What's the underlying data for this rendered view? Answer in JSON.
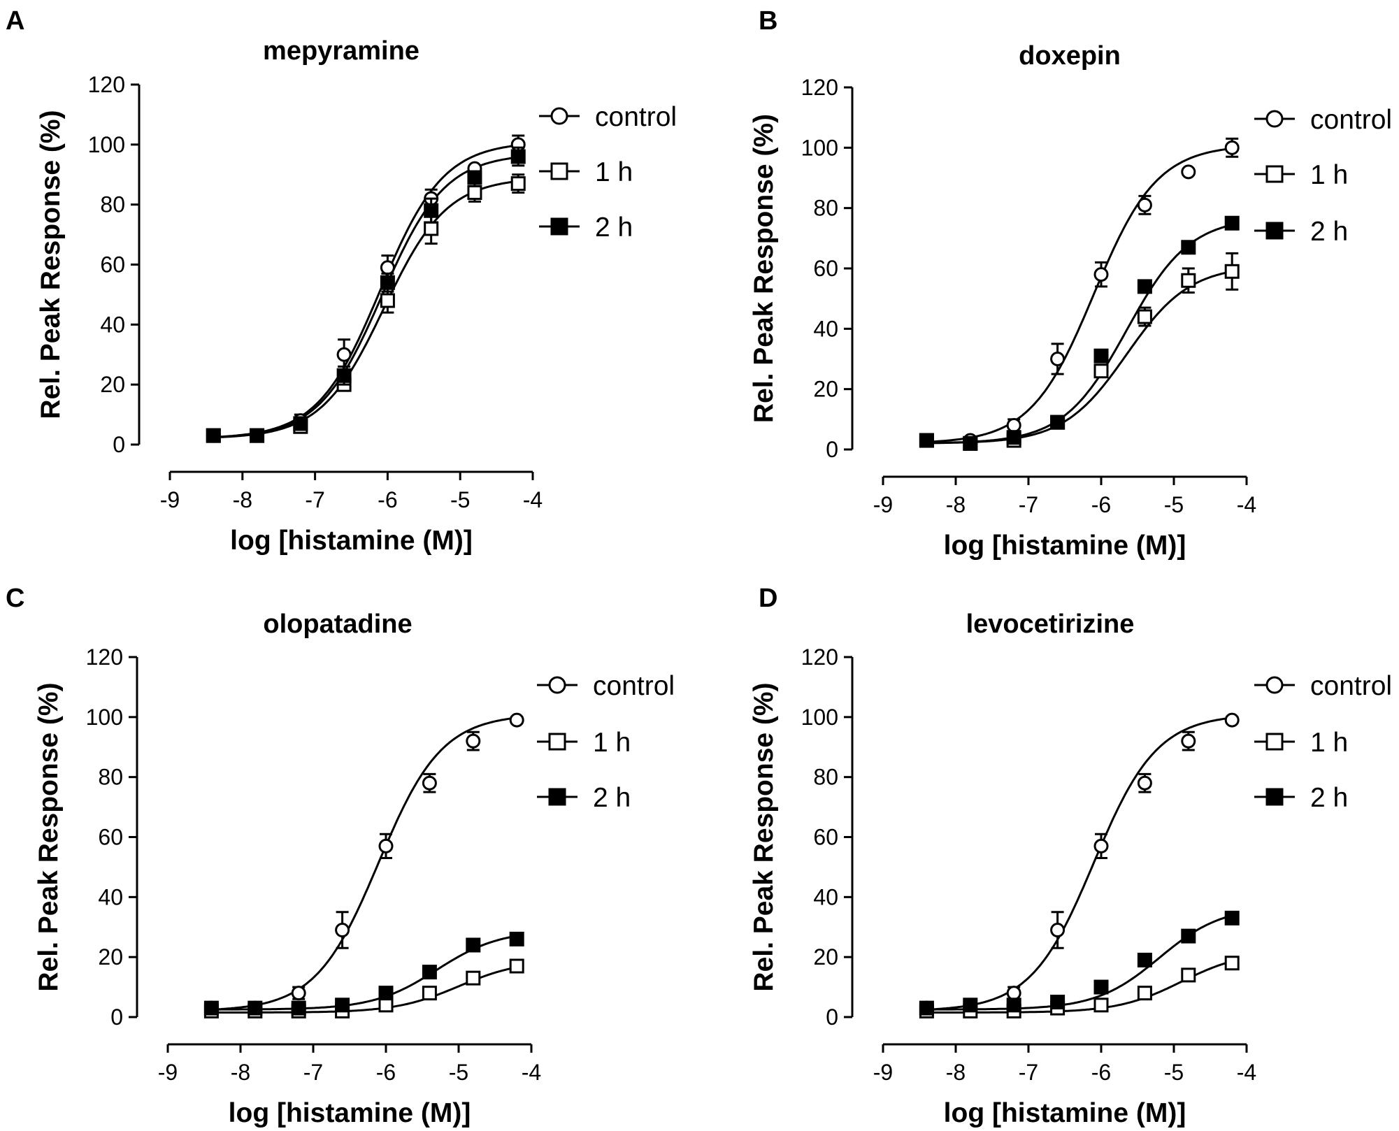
{
  "figure": {
    "description_colors": {
      "line": "#000000",
      "open_fill": "#ffffff",
      "filled_fill": "#000000"
    }
  },
  "chart_data": [
    {
      "type": "line",
      "panel": "A",
      "title": "mepyramine",
      "xlabel": "log [histamine (M)]",
      "ylabel": "Rel. Peak Response (%)",
      "xlim": [
        -9,
        -4
      ],
      "ylim": [
        0,
        120
      ],
      "xticks": [
        -9,
        -8,
        -7,
        -6,
        -5,
        -4
      ],
      "yticks": [
        0,
        20,
        40,
        60,
        80,
        100,
        120
      ],
      "x": [
        -8.4,
        -7.8,
        -7.2,
        -6.6,
        -6.0,
        -5.4,
        -4.8,
        -4.2
      ],
      "legend_position": "top-right",
      "series": [
        {
          "name": "control",
          "marker": "circle-open",
          "values": [
            3,
            3,
            8,
            30,
            59,
            82,
            92,
            100
          ],
          "errors": [
            0,
            0,
            2,
            5,
            4,
            3,
            1,
            3
          ],
          "fit": {
            "bottom": 2,
            "top": 101,
            "logec50": -6.1,
            "hill": 1.0
          }
        },
        {
          "name": "1 h",
          "marker": "square-open",
          "values": [
            3,
            3,
            6,
            20,
            48,
            72,
            84,
            87
          ],
          "errors": [
            0,
            0,
            1,
            2,
            4,
            5,
            3,
            3
          ],
          "fit": {
            "bottom": 2,
            "top": 89,
            "logec50": -6.05,
            "hill": 1.0
          }
        },
        {
          "name": "2 h",
          "marker": "square-filled",
          "values": [
            3,
            3,
            7,
            23,
            54,
            78,
            89,
            96
          ],
          "errors": [
            0,
            0,
            1,
            3,
            3,
            4,
            2,
            3
          ],
          "fit": {
            "bottom": 2,
            "top": 97,
            "logec50": -6.08,
            "hill": 1.0
          }
        }
      ]
    },
    {
      "type": "line",
      "panel": "B",
      "title": "doxepin",
      "xlabel": "log [histamine (M)]",
      "ylabel": "Rel. Peak Response (%)",
      "xlim": [
        -9,
        -4
      ],
      "ylim": [
        0,
        120
      ],
      "xticks": [
        -9,
        -8,
        -7,
        -6,
        -5,
        -4
      ],
      "yticks": [
        0,
        20,
        40,
        60,
        80,
        100,
        120
      ],
      "x": [
        -8.4,
        -7.8,
        -7.2,
        -6.6,
        -6.0,
        -5.4,
        -4.8,
        -4.2
      ],
      "legend_position": "top-right",
      "series": [
        {
          "name": "control",
          "marker": "circle-open",
          "values": [
            3,
            3,
            8,
            30,
            58,
            81,
            92,
            100
          ],
          "errors": [
            0,
            0,
            2,
            5,
            4,
            3,
            1,
            3
          ],
          "fit": {
            "bottom": 2,
            "top": 101,
            "logec50": -6.1,
            "hill": 1.0
          }
        },
        {
          "name": "1 h",
          "marker": "square-open",
          "values": [
            3,
            2,
            3,
            9,
            26,
            44,
            56,
            59
          ],
          "errors": [
            0,
            0,
            1,
            1,
            2,
            3,
            4,
            6
          ],
          "fit": {
            "bottom": 2,
            "top": 61,
            "logec50": -5.65,
            "hill": 1.0
          }
        },
        {
          "name": "2 h",
          "marker": "square-filled",
          "values": [
            3,
            2,
            4,
            9,
            31,
            54,
            67,
            75
          ],
          "errors": [
            0,
            0,
            1,
            1,
            2,
            2,
            2,
            2
          ],
          "fit": {
            "bottom": 2,
            "top": 77,
            "logec50": -5.65,
            "hill": 1.0
          }
        }
      ]
    },
    {
      "type": "line",
      "panel": "C",
      "title": "olopatadine",
      "xlabel": "log [histamine (M)]",
      "ylabel": "Rel. Peak Response (%)",
      "xlim": [
        -9,
        -4
      ],
      "ylim": [
        0,
        120
      ],
      "xticks": [
        -9,
        -8,
        -7,
        -6,
        -5,
        -4
      ],
      "yticks": [
        0,
        20,
        40,
        60,
        80,
        100,
        120
      ],
      "x": [
        -8.4,
        -7.8,
        -7.2,
        -6.6,
        -6.0,
        -5.4,
        -4.8,
        -4.2
      ],
      "legend_position": "top-right",
      "series": [
        {
          "name": "control",
          "marker": "circle-open",
          "values": [
            3,
            3,
            8,
            29,
            57,
            78,
            92,
            99
          ],
          "errors": [
            0,
            0,
            2,
            6,
            4,
            3,
            3,
            1
          ],
          "fit": {
            "bottom": 2,
            "top": 101,
            "logec50": -6.1,
            "hill": 1.0
          }
        },
        {
          "name": "1 h",
          "marker": "square-open",
          "values": [
            2,
            2,
            2,
            2,
            4,
            8,
            13,
            17
          ],
          "errors": [
            0,
            0,
            0,
            0,
            1,
            1,
            1,
            1
          ],
          "fit": {
            "bottom": 1.5,
            "top": 19,
            "logec50": -5.0,
            "hill": 1.0
          }
        },
        {
          "name": "2 h",
          "marker": "square-filled",
          "values": [
            3,
            3,
            3,
            4,
            8,
            15,
            24,
            26
          ],
          "errors": [
            0,
            0,
            0,
            0,
            1,
            1,
            1,
            1
          ],
          "fit": {
            "bottom": 2.5,
            "top": 29,
            "logec50": -5.3,
            "hill": 1.0
          }
        }
      ]
    },
    {
      "type": "line",
      "panel": "D",
      "title": "levocetirizine",
      "xlabel": "log [histamine (M)]",
      "ylabel": "Rel. Peak Response (%)",
      "xlim": [
        -9,
        -4
      ],
      "ylim": [
        0,
        120
      ],
      "xticks": [
        -9,
        -8,
        -7,
        -6,
        -5,
        -4
      ],
      "yticks": [
        0,
        20,
        40,
        60,
        80,
        100,
        120
      ],
      "x": [
        -8.4,
        -7.8,
        -7.2,
        -6.6,
        -6.0,
        -5.4,
        -4.8,
        -4.2
      ],
      "legend_position": "top-right",
      "series": [
        {
          "name": "control",
          "marker": "circle-open",
          "values": [
            3,
            3,
            8,
            29,
            57,
            78,
            92,
            99
          ],
          "errors": [
            0,
            0,
            2,
            6,
            4,
            3,
            3,
            1
          ],
          "fit": {
            "bottom": 2,
            "top": 101,
            "logec50": -6.1,
            "hill": 1.0
          }
        },
        {
          "name": "1 h",
          "marker": "square-open",
          "values": [
            2,
            2,
            2,
            3,
            4,
            8,
            14,
            18
          ],
          "errors": [
            0,
            0,
            0,
            0,
            1,
            1,
            1,
            1
          ],
          "fit": {
            "bottom": 1.5,
            "top": 22,
            "logec50": -4.9,
            "hill": 1.0
          }
        },
        {
          "name": "2 h",
          "marker": "square-filled",
          "values": [
            3,
            4,
            4,
            5,
            10,
            19,
            27,
            33
          ],
          "errors": [
            0,
            0,
            0,
            0,
            1,
            1,
            1,
            1
          ],
          "fit": {
            "bottom": 2.5,
            "top": 37,
            "logec50": -5.2,
            "hill": 1.0
          }
        }
      ]
    }
  ]
}
